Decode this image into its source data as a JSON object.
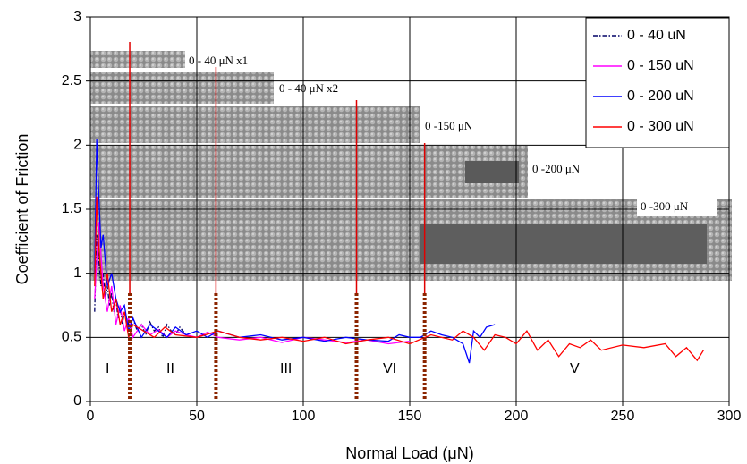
{
  "chart_data": {
    "type": "line",
    "xlabel": "Normal Load (μN)",
    "ylabel": "Coefficient of Friction",
    "xlim": [
      0,
      300
    ],
    "xticks": [
      0,
      50,
      100,
      150,
      200,
      250,
      300
    ],
    "ylim": [
      0,
      3
    ],
    "yticks": [
      0,
      0.5,
      1,
      1.5,
      2,
      2.5,
      3
    ],
    "grid": true,
    "legend": "upper right",
    "series": [
      {
        "name": "0 - 40 uN",
        "color": "#000066",
        "line_style": "dashdot",
        "x": [
          2,
          3,
          4,
          5,
          6,
          7,
          8,
          9,
          10,
          11,
          12,
          13,
          14,
          15,
          16,
          18,
          20,
          22,
          24,
          26,
          28,
          30,
          32,
          34,
          36,
          38,
          40,
          42,
          44
        ],
        "values": [
          0.7,
          1.3,
          1.1,
          0.9,
          1.0,
          0.8,
          0.9,
          0.75,
          0.85,
          0.7,
          0.8,
          0.65,
          0.75,
          0.6,
          0.7,
          0.6,
          0.65,
          0.55,
          0.6,
          0.52,
          0.62,
          0.55,
          0.58,
          0.5,
          0.6,
          0.55,
          0.52,
          0.58,
          0.54
        ]
      },
      {
        "name": "0 - 150 uN",
        "color": "#ff00ff",
        "line_style": "solid",
        "x": [
          2,
          4,
          6,
          8,
          10,
          12,
          14,
          16,
          18,
          20,
          24,
          28,
          32,
          36,
          40,
          45,
          50,
          55,
          60,
          70,
          80,
          90,
          100,
          110,
          120,
          130,
          140,
          150
        ],
        "values": [
          0.8,
          1.4,
          0.9,
          0.7,
          0.9,
          0.6,
          0.75,
          0.55,
          0.65,
          0.5,
          0.6,
          0.52,
          0.56,
          0.5,
          0.55,
          0.52,
          0.5,
          0.54,
          0.5,
          0.48,
          0.5,
          0.46,
          0.5,
          0.48,
          0.46,
          0.48,
          0.45,
          0.47
        ]
      },
      {
        "name": "0 - 200 uN",
        "color": "#0000ff",
        "line_style": "solid",
        "x": [
          2,
          3,
          4,
          5,
          6,
          8,
          10,
          12,
          14,
          16,
          18,
          20,
          24,
          28,
          32,
          36,
          40,
          45,
          50,
          55,
          60,
          70,
          80,
          90,
          100,
          110,
          120,
          130,
          140,
          145,
          150,
          155,
          160,
          165,
          170,
          175,
          178,
          180,
          183,
          186,
          190
        ],
        "values": [
          1.0,
          2.05,
          1.6,
          1.2,
          1.3,
          0.9,
          1.0,
          0.8,
          0.7,
          0.75,
          0.55,
          0.65,
          0.5,
          0.6,
          0.55,
          0.5,
          0.58,
          0.52,
          0.55,
          0.5,
          0.55,
          0.5,
          0.52,
          0.48,
          0.5,
          0.47,
          0.5,
          0.48,
          0.47,
          0.52,
          0.5,
          0.5,
          0.55,
          0.52,
          0.5,
          0.45,
          0.3,
          0.55,
          0.5,
          0.58,
          0.6
        ]
      },
      {
        "name": "0 - 300 uN",
        "color": "#ff0000",
        "line_style": "solid",
        "x": [
          2,
          3,
          4,
          6,
          8,
          10,
          12,
          14,
          16,
          18,
          20,
          25,
          30,
          35,
          40,
          50,
          60,
          70,
          80,
          90,
          100,
          110,
          120,
          130,
          140,
          150,
          160,
          170,
          175,
          180,
          185,
          190,
          195,
          200,
          205,
          210,
          215,
          220,
          225,
          230,
          235,
          240,
          250,
          260,
          270,
          275,
          280,
          285,
          288
        ],
        "values": [
          0.9,
          1.6,
          1.2,
          0.8,
          1.0,
          0.7,
          0.8,
          0.6,
          0.7,
          0.5,
          0.6,
          0.55,
          0.5,
          0.58,
          0.52,
          0.5,
          0.55,
          0.5,
          0.48,
          0.5,
          0.47,
          0.5,
          0.45,
          0.48,
          0.5,
          0.45,
          0.52,
          0.48,
          0.55,
          0.5,
          0.4,
          0.52,
          0.5,
          0.45,
          0.55,
          0.4,
          0.48,
          0.35,
          0.45,
          0.42,
          0.48,
          0.4,
          0.44,
          0.42,
          0.45,
          0.35,
          0.42,
          0.32,
          0.4
        ]
      }
    ],
    "region_boundaries": [
      18.5,
      59,
      125,
      157
    ],
    "image_labels": [
      "0 - 40 μN  x1",
      "0 - 40 μN  x2",
      "0 -150 μN",
      "0 -200 μN",
      "0 -300 μN"
    ],
    "regions": [
      "I",
      "II",
      "III",
      "VI",
      "V"
    ]
  }
}
